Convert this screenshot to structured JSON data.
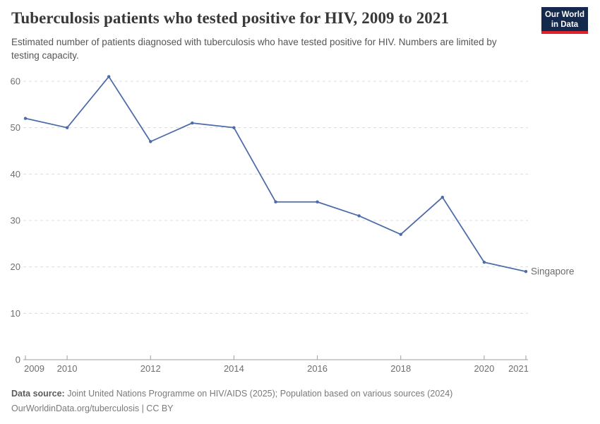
{
  "header": {
    "title": "Tuberculosis patients who tested positive for HIV, 2009 to 2021",
    "subtitle": "Estimated number of patients diagnosed with tuberculosis who have tested positive for HIV. Numbers are limited by testing capacity."
  },
  "logo": {
    "line1": "Our World",
    "line2": "in Data",
    "bg_color": "#14294B",
    "stripe_color": "#E0232C"
  },
  "chart_data": {
    "type": "line",
    "title": "Tuberculosis patients who tested positive for HIV, 2009 to 2021",
    "x": [
      2009,
      2010,
      2011,
      2012,
      2013,
      2014,
      2015,
      2016,
      2017,
      2018,
      2019,
      2020,
      2021
    ],
    "series": [
      {
        "name": "Singapore",
        "values": [
          52,
          50,
          61,
          47,
          51,
          50,
          34,
          34,
          31,
          27,
          35,
          21,
          19
        ],
        "color": "#4C6BA8"
      }
    ],
    "end_label": "Singapore",
    "xlabel": "",
    "ylabel": "",
    "xticks": [
      2009,
      2010,
      2012,
      2014,
      2016,
      2018,
      2020,
      2021
    ],
    "yticks": [
      0,
      10,
      20,
      30,
      40,
      50,
      60
    ],
    "ylim": [
      0,
      62
    ],
    "grid": "horizontal-dashed",
    "grid_color": "#dcdcdc",
    "axis_color": "#9e9e9e",
    "legend_position": "end-of-line"
  },
  "footer": {
    "source_label": "Data source:",
    "source_text": "Joint United Nations Programme on HIV/AIDS (2025); Population based on various sources (2024)",
    "license": "OurWorldinData.org/tuberculosis | CC BY"
  }
}
